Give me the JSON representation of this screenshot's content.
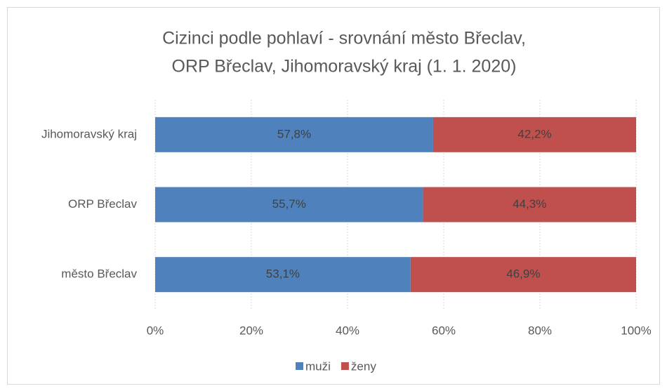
{
  "chart_data": {
    "type": "stacked-barh",
    "title": [
      "Cizinci podle pohlaví - srovnání  město Břeclav,",
      "ORP Břeclav, Jihomoravský kraj (1. 1. 2020)"
    ],
    "categories": [
      "Jihomoravský kraj",
      "ORP Břeclav",
      "město Břeclav"
    ],
    "series": [
      {
        "name": "muži",
        "color": "#4f81bd",
        "values": [
          57.8,
          55.7,
          53.1
        ],
        "value_labels": [
          "57,8%",
          "55,7%",
          "53,1%"
        ]
      },
      {
        "name": "ženy",
        "color": "#c0504d",
        "values": [
          42.2,
          44.3,
          46.9
        ],
        "value_labels": [
          "42,2%",
          "44,3%",
          "46,9%"
        ]
      }
    ],
    "xlim": [
      0,
      100
    ],
    "xticks": [
      {
        "value": 0,
        "label": "0%"
      },
      {
        "value": 20,
        "label": "20%"
      },
      {
        "value": 40,
        "label": "40%"
      },
      {
        "value": 60,
        "label": "60%"
      },
      {
        "value": 80,
        "label": "80%"
      },
      {
        "value": 100,
        "label": "100%"
      }
    ],
    "grid": true,
    "legend": "bottom"
  }
}
